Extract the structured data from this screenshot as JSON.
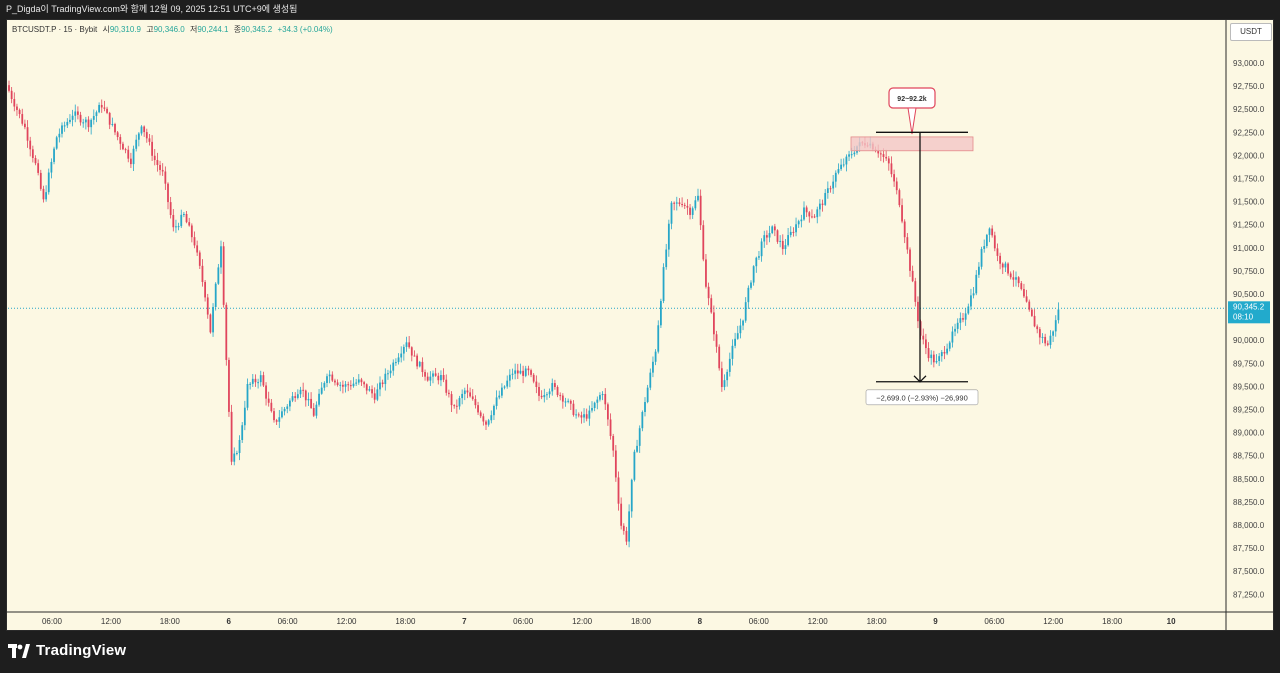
{
  "header": {
    "caption": "P_Digda이 TradingView.com와 함께 12월 09, 2025 12:51 UTC+9에 생성됨"
  },
  "legend": {
    "symbol": "BTCUSDT.P · 15 · Bybit",
    "open_label": "시",
    "open": "90,310.9",
    "high_label": "고",
    "high": "90,346.0",
    "low_label": "저",
    "low": "90,244.1",
    "close_label": "종",
    "close": "90,345.2",
    "change": "+34.3 (+0.04%)"
  },
  "currency_button": "USDT",
  "price_tag": {
    "price": "90,345.2",
    "countdown": "08:10"
  },
  "brand": {
    "name": "TradingView"
  },
  "colors": {
    "background": "#fcf8e3",
    "up": "#26a6c8",
    "down": "#e0455c",
    "price_tag": "#22aacc",
    "zone": "#f3c6c6"
  },
  "annotations": {
    "zone_label": "92~92.2k",
    "measure_label": "−2,699.0 (−2.93%) −26,990"
  },
  "chart_data": {
    "type": "candlestick",
    "title": "",
    "xlabel": "",
    "ylabel": "",
    "y_axis": {
      "ticks": [
        "93,000.0",
        "92,750.0",
        "92,500.0",
        "92,250.0",
        "92,000.0",
        "91,750.0",
        "91,500.0",
        "91,250.0",
        "91,000.0",
        "90,750.0",
        "90,500.0",
        "90,250.0",
        "90,000.0",
        "89,750.0",
        "89,500.0",
        "89,250.0",
        "89,000.0",
        "88,750.0",
        "88,500.0",
        "88,250.0",
        "88,000.0",
        "87,750.0",
        "87,500.0",
        "87,250.0"
      ],
      "tick_values": [
        93000,
        92750,
        92500,
        92250,
        92000,
        91750,
        91500,
        91250,
        91000,
        90750,
        90500,
        90250,
        90000,
        89750,
        89500,
        89250,
        89000,
        88750,
        88500,
        88250,
        88000,
        87750,
        87500,
        87250
      ],
      "ylim": [
        87150,
        93100
      ]
    },
    "x_axis": {
      "ticks": [
        "06:00",
        "12:00",
        "18:00",
        "6",
        "06:00",
        "12:00",
        "18:00",
        "7",
        "06:00",
        "12:00",
        "18:00",
        "8",
        "06:00",
        "12:00",
        "18:00",
        "9",
        "06:00",
        "12:00",
        "18:00",
        "10"
      ]
    },
    "series": [
      {
        "name": "BTCUSDT.P",
        "anchors": [
          [
            0,
            92700
          ],
          [
            6,
            92300
          ],
          [
            10,
            91900
          ],
          [
            13,
            91500
          ],
          [
            18,
            92200
          ],
          [
            24,
            92450
          ],
          [
            30,
            92350
          ],
          [
            35,
            92550
          ],
          [
            40,
            92250
          ],
          [
            46,
            91950
          ],
          [
            50,
            92350
          ],
          [
            55,
            91950
          ],
          [
            58,
            91800
          ],
          [
            62,
            91200
          ],
          [
            66,
            91350
          ],
          [
            70,
            91050
          ],
          [
            74,
            90500
          ],
          [
            76,
            90100
          ],
          [
            80,
            91050
          ],
          [
            82,
            89800
          ],
          [
            84,
            88650
          ],
          [
            87,
            88900
          ],
          [
            90,
            89500
          ],
          [
            95,
            89600
          ],
          [
            100,
            89100
          ],
          [
            105,
            89300
          ],
          [
            110,
            89500
          ],
          [
            115,
            89200
          ],
          [
            120,
            89650
          ],
          [
            126,
            89500
          ],
          [
            132,
            89550
          ],
          [
            138,
            89400
          ],
          [
            146,
            89800
          ],
          [
            150,
            90000
          ],
          [
            153,
            89800
          ],
          [
            158,
            89600
          ],
          [
            163,
            89600
          ],
          [
            168,
            89250
          ],
          [
            172,
            89450
          ],
          [
            176,
            89300
          ],
          [
            180,
            89100
          ],
          [
            184,
            89350
          ],
          [
            190,
            89650
          ],
          [
            196,
            89650
          ],
          [
            200,
            89400
          ],
          [
            205,
            89500
          ],
          [
            210,
            89350
          ],
          [
            215,
            89150
          ],
          [
            219,
            89200
          ],
          [
            224,
            89450
          ],
          [
            228,
            88800
          ],
          [
            231,
            88000
          ],
          [
            233,
            87850
          ],
          [
            236,
            88750
          ],
          [
            240,
            89350
          ],
          [
            244,
            89900
          ],
          [
            247,
            90750
          ],
          [
            250,
            91450
          ],
          [
            254,
            91500
          ],
          [
            257,
            91400
          ],
          [
            260,
            91550
          ],
          [
            263,
            90600
          ],
          [
            266,
            90100
          ],
          [
            269,
            89500
          ],
          [
            273,
            89900
          ],
          [
            277,
            90250
          ],
          [
            281,
            90800
          ],
          [
            285,
            91100
          ],
          [
            288,
            91200
          ],
          [
            292,
            91000
          ],
          [
            296,
            91200
          ],
          [
            300,
            91400
          ],
          [
            304,
            91350
          ],
          [
            308,
            91550
          ],
          [
            312,
            91800
          ],
          [
            316,
            91950
          ],
          [
            320,
            92100
          ],
          [
            324,
            92150
          ],
          [
            328,
            92050
          ],
          [
            332,
            91900
          ],
          [
            334,
            91700
          ],
          [
            336,
            91500
          ],
          [
            338,
            91150
          ],
          [
            341,
            90600
          ],
          [
            344,
            90050
          ],
          [
            347,
            89850
          ],
          [
            350,
            89750
          ],
          [
            354,
            89950
          ],
          [
            357,
            90100
          ],
          [
            360,
            90250
          ],
          [
            364,
            90550
          ],
          [
            367,
            90950
          ],
          [
            370,
            91250
          ],
          [
            373,
            90900
          ],
          [
            377,
            90750
          ],
          [
            381,
            90600
          ],
          [
            385,
            90300
          ],
          [
            389,
            90050
          ],
          [
            392,
            89950
          ],
          [
            395,
            90200
          ],
          [
            396,
            90345
          ]
        ]
      }
    ],
    "last_price": 90345.2,
    "zone": {
      "y_from": 92050,
      "y_to": 92200
    },
    "measure": {
      "y_from": 92250,
      "y_to": 89550,
      "change": -2699.0,
      "change_pct": -2.93
    }
  }
}
